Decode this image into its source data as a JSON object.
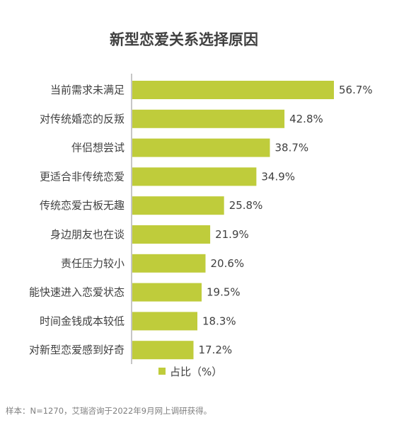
{
  "chart_data": {
    "type": "bar",
    "orientation": "horizontal",
    "title": "新型恋爱关系选择原因",
    "categories": [
      "当前需求未满足",
      "对传统婚恋的反叛",
      "伴侣想尝试",
      "更适合非传统恋爱",
      "传统恋爱古板无趣",
      "身边朋友也在谈",
      "责任压力较小",
      "能快速进入恋爱状态",
      "时间金钱成本较低",
      "对新型恋爱感到好奇"
    ],
    "series": [
      {
        "name": "占比（%）",
        "values": [
          56.7,
          42.8,
          38.7,
          34.9,
          25.8,
          21.9,
          20.6,
          19.5,
          18.3,
          17.2
        ],
        "labels": [
          "56.7%",
          "42.8%",
          "38.7%",
          "34.9%",
          "25.8%",
          "21.9%",
          "20.6%",
          "19.5%",
          "18.3%",
          "17.2%"
        ]
      }
    ],
    "xlim": [
      0,
      60
    ],
    "grid": false,
    "legend_position": "bottom",
    "bar_color": "#bfcc3b"
  },
  "source_note": "样本：N=1270，艾瑞咨询于2022年9月网上调研获得。"
}
